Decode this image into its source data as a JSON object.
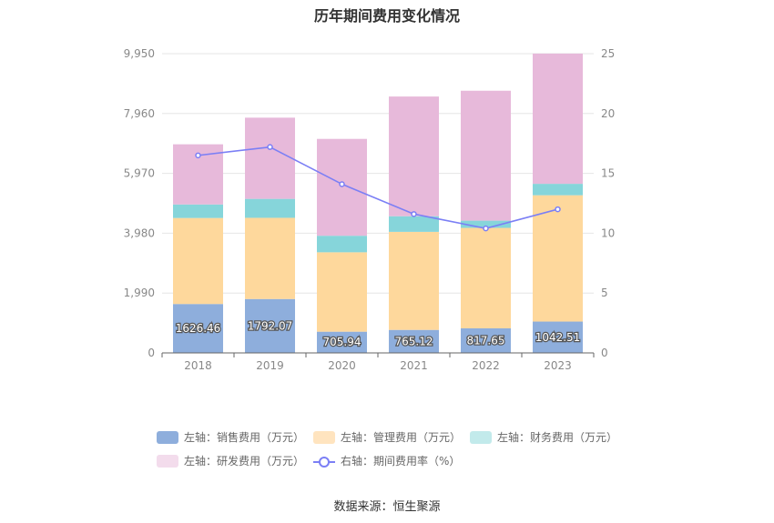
{
  "chart_data": {
    "type": "bar",
    "title": "历年期间费用变化情况",
    "categories": [
      "2018",
      "2019",
      "2020",
      "2021",
      "2022",
      "2023"
    ],
    "y_left": {
      "ticks": [
        "0",
        "1,990",
        "3,980",
        "5,970",
        "7,960",
        "9,950"
      ],
      "ylim": [
        0,
        9950
      ]
    },
    "y_right": {
      "ticks": [
        "0",
        "5",
        "10",
        "15",
        "20",
        "25"
      ],
      "ylim": [
        0,
        25
      ]
    },
    "series": [
      {
        "name": "左轴：销售费用（万元）",
        "type": "bar",
        "axis": "left",
        "color": "#8eaedc",
        "values": [
          1626.46,
          1792.07,
          705.94,
          765.12,
          817.65,
          1042.51
        ],
        "labels": [
          "1626.46",
          "1792.07",
          "705.94",
          "765.12",
          "817.65",
          "1042.51"
        ]
      },
      {
        "name": "左轴：管理费用（万元）",
        "type": "bar",
        "axis": "left",
        "color": "#fed89c",
        "values": [
          2860,
          2700,
          2640,
          3260,
          3340,
          4200
        ]
      },
      {
        "name": "左轴：财务费用（万元）",
        "type": "bar",
        "axis": "left",
        "color": "#86d5da",
        "values": [
          450,
          630,
          550,
          520,
          240,
          380
        ]
      },
      {
        "name": "左轴：研发费用（万元）",
        "type": "bar",
        "axis": "left",
        "color": "#e7b9da",
        "values": [
          2000,
          2700,
          3220,
          3980,
          4320,
          4330
        ]
      },
      {
        "name": "右轴：期间费用率（%）",
        "type": "line",
        "axis": "right",
        "color": "#7b7ff5",
        "values": [
          16.5,
          17.2,
          14.1,
          11.6,
          10.4,
          12.0
        ]
      }
    ],
    "legend": "bottom",
    "grid": true
  },
  "legend_items": [
    {
      "label": "左轴：销售费用（万元）",
      "color": "#8eaedc",
      "kind": "bar"
    },
    {
      "label": "左轴：管理费用（万元）",
      "color": "#ffe4bf",
      "kind": "bar"
    },
    {
      "label": "左轴：财务费用（万元）",
      "color": "#c2eaeb",
      "kind": "bar"
    },
    {
      "label": "左轴：研发费用（万元）",
      "color": "#f3dcec",
      "kind": "bar"
    },
    {
      "label": "右轴：期间费用率（%）",
      "color": "#7b7ff5",
      "kind": "line"
    }
  ],
  "source": "数据来源：恒生聚源"
}
